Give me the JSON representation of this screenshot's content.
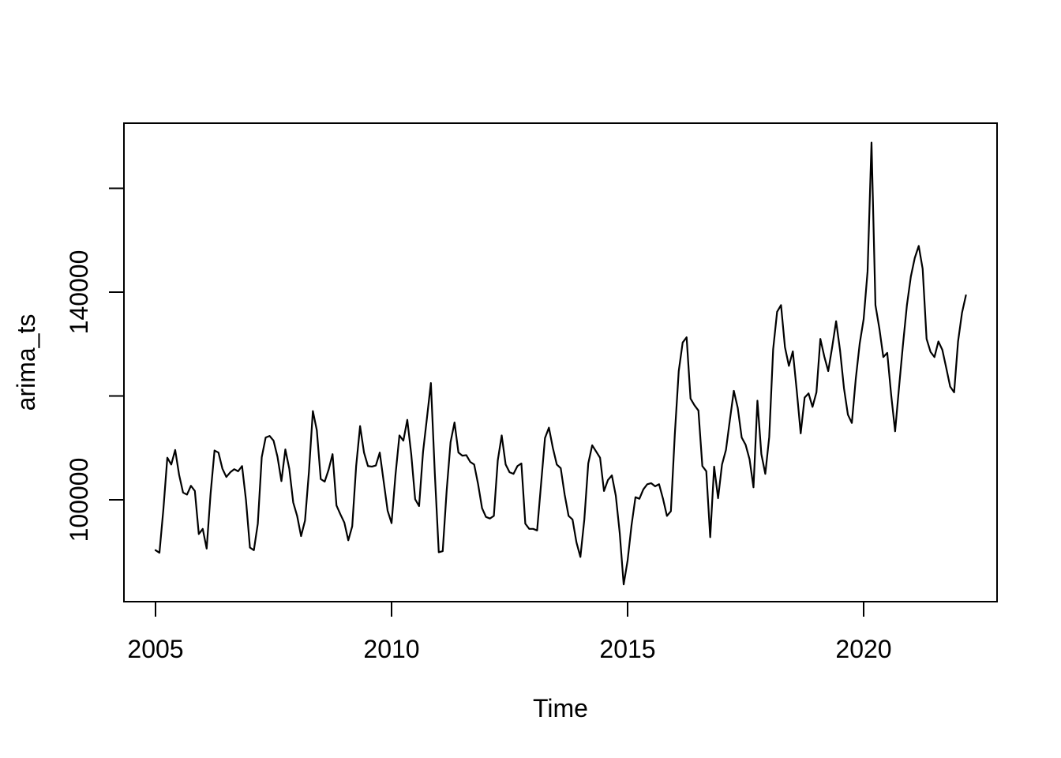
{
  "figure": {
    "background": "#ffffff",
    "foreground": "#000000"
  },
  "chart_data": {
    "type": "line",
    "title": "",
    "xlabel": "Time",
    "ylabel": "arima_ts",
    "series_name": "arima_ts",
    "line_color": "#000000",
    "grid": false,
    "legend": "none",
    "frequency": 12,
    "x_start": {
      "year": 2005,
      "month": 1
    },
    "x_end": {
      "year": 2022,
      "month": 3
    },
    "xlim": [
      2004.31,
      2022.85
    ],
    "ylim": [
      80400,
      172600
    ],
    "x_ticks": [
      2005,
      2010,
      2015,
      2020
    ],
    "x_tick_labels": [
      "2005",
      "2010",
      "2015",
      "2020"
    ],
    "y_ticks": [
      100000,
      120000,
      140000,
      160000
    ],
    "y_tick_labels_shown": {
      "100000": "100000",
      "140000": "140000"
    },
    "values": [
      90300,
      89800,
      98200,
      108100,
      106800,
      109600,
      104800,
      101400,
      101000,
      102700,
      101700,
      93400,
      94400,
      90600,
      101200,
      109500,
      109100,
      106000,
      104400,
      105300,
      105900,
      105500,
      106500,
      99900,
      90800,
      90300,
      95400,
      108200,
      112000,
      112300,
      111400,
      108300,
      103600,
      109700,
      106000,
      99500,
      96900,
      93000,
      96000,
      105400,
      117100,
      113400,
      104000,
      103500,
      105800,
      108800,
      98900,
      97200,
      95600,
      92200,
      94900,
      106500,
      114200,
      109100,
      106500,
      106400,
      106600,
      109100,
      103500,
      97900,
      95500,
      104800,
      112400,
      111400,
      115400,
      108800,
      100100,
      98800,
      109200,
      115800,
      122500,
      105000,
      89900,
      90100,
      101700,
      111100,
      114900,
      109100,
      108500,
      108600,
      107300,
      106800,
      103000,
      98400,
      96700,
      96400,
      96900,
      107600,
      112400,
      106800,
      105300,
      105000,
      106500,
      107000,
      95400,
      94400,
      94400,
      94100,
      103000,
      111900,
      113900,
      110000,
      106800,
      106100,
      101000,
      96900,
      96200,
      91800,
      89000,
      96200,
      107000,
      110500,
      109300,
      108100,
      101700,
      103800,
      104700,
      100800,
      93600,
      83700,
      88300,
      95100,
      100500,
      100200,
      102000,
      103000,
      103200,
      102600,
      103000,
      100200,
      96900,
      97800,
      112600,
      124800,
      130300,
      131300,
      119500,
      118200,
      117200,
      106500,
      105500,
      92800,
      106400,
      100300,
      106800,
      109600,
      115400,
      121000,
      117700,
      112000,
      110600,
      107800,
      102400,
      119100,
      108800,
      105000,
      112100,
      129000,
      136200,
      137500,
      129400,
      125800,
      128600,
      121000,
      112800,
      119700,
      120500,
      117900,
      120700,
      131000,
      127600,
      124800,
      129400,
      134400,
      128800,
      121500,
      116400,
      114800,
      123300,
      130100,
      134800,
      144000,
      168800,
      137500,
      133000,
      127500,
      128300,
      120200,
      113200,
      121700,
      129900,
      137500,
      143000,
      146600,
      148900,
      144500,
      131000,
      128500,
      127500,
      130500,
      128900,
      125400,
      121800,
      120700,
      130500,
      136000,
      139400
    ]
  }
}
